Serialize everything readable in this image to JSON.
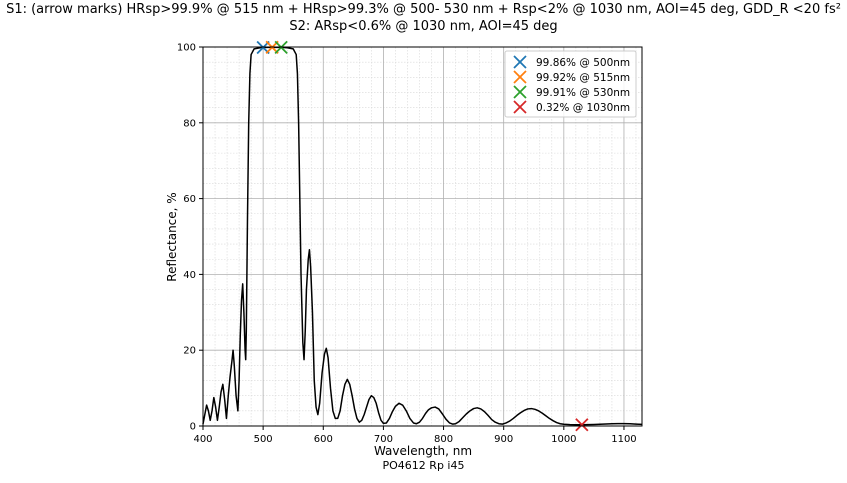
{
  "chart_data": {
    "type": "line",
    "title_line1": "S1: (arrow marks) HRsp>99.9% @ 515 nm + HRsp>99.3% @ 500- 530 nm + Rsp<2% @ 1030 nm, AOI=45 deg, GDD_R <20 fs²",
    "title_line2": "S2: ARsp<0.6% @ 1030 nm, AOI=45 deg",
    "xlabel": "Wavelength, nm",
    "ylabel": "Reflectance, %",
    "xlim": [
      400,
      1130
    ],
    "ylim": [
      0,
      100
    ],
    "xticks": [
      400,
      500,
      600,
      700,
      800,
      900,
      1000,
      1100
    ],
    "yticks": [
      0,
      20,
      40,
      60,
      80,
      100
    ],
    "grid": true,
    "minor_grid": true,
    "legend_position": "top-right",
    "line_color": "#000000",
    "series": [
      {
        "values": [
          [
            400,
            0.5
          ],
          [
            403,
            3
          ],
          [
            406,
            5.5
          ],
          [
            409,
            4
          ],
          [
            412,
            1.5
          ],
          [
            415,
            4
          ],
          [
            418,
            7.5
          ],
          [
            421,
            5
          ],
          [
            424,
            1.5
          ],
          [
            427,
            5
          ],
          [
            430,
            9
          ],
          [
            433,
            11
          ],
          [
            436,
            7
          ],
          [
            439,
            2
          ],
          [
            442,
            8
          ],
          [
            445,
            13
          ],
          [
            448,
            17
          ],
          [
            450,
            20
          ],
          [
            452,
            16
          ],
          [
            455,
            8
          ],
          [
            458,
            4
          ],
          [
            460,
            12
          ],
          [
            462,
            24
          ],
          [
            464,
            33
          ],
          [
            466,
            37.5
          ],
          [
            468,
            30
          ],
          [
            470,
            20
          ],
          [
            471,
            17.5
          ],
          [
            472,
            25
          ],
          [
            474,
            55
          ],
          [
            476,
            80
          ],
          [
            478,
            93
          ],
          [
            480,
            98
          ],
          [
            485,
            99.5
          ],
          [
            495,
            99.8
          ],
          [
            500,
            99.86
          ],
          [
            515,
            99.92
          ],
          [
            530,
            99.91
          ],
          [
            540,
            99.8
          ],
          [
            550,
            99.5
          ],
          [
            555,
            98
          ],
          [
            557,
            93
          ],
          [
            559,
            80
          ],
          [
            561,
            60
          ],
          [
            563,
            40
          ],
          [
            566,
            22
          ],
          [
            568,
            17.5
          ],
          [
            570,
            25
          ],
          [
            572,
            36
          ],
          [
            575,
            44
          ],
          [
            577,
            46.5
          ],
          [
            579,
            42
          ],
          [
            582,
            30
          ],
          [
            585,
            12
          ],
          [
            588,
            5
          ],
          [
            591,
            3
          ],
          [
            594,
            6
          ],
          [
            598,
            14
          ],
          [
            602,
            19
          ],
          [
            605,
            20.5
          ],
          [
            608,
            18
          ],
          [
            612,
            10
          ],
          [
            616,
            4
          ],
          [
            620,
            2
          ],
          [
            624,
            2
          ],
          [
            628,
            4
          ],
          [
            632,
            8
          ],
          [
            636,
            11
          ],
          [
            640,
            12.3
          ],
          [
            644,
            11
          ],
          [
            648,
            8
          ],
          [
            652,
            4.5
          ],
          [
            656,
            2
          ],
          [
            660,
            1
          ],
          [
            664,
            1.5
          ],
          [
            668,
            3
          ],
          [
            672,
            5
          ],
          [
            676,
            7
          ],
          [
            680,
            8
          ],
          [
            684,
            7.5
          ],
          [
            688,
            6
          ],
          [
            692,
            3.5
          ],
          [
            696,
            1.5
          ],
          [
            700,
            0.7
          ],
          [
            705,
            0.8
          ],
          [
            710,
            2
          ],
          [
            715,
            3.8
          ],
          [
            720,
            5.2
          ],
          [
            726,
            6
          ],
          [
            732,
            5.5
          ],
          [
            738,
            4
          ],
          [
            744,
            2
          ],
          [
            750,
            0.8
          ],
          [
            755,
            0.6
          ],
          [
            760,
            1
          ],
          [
            765,
            2
          ],
          [
            770,
            3.3
          ],
          [
            775,
            4.3
          ],
          [
            780,
            4.8
          ],
          [
            786,
            5
          ],
          [
            792,
            4.5
          ],
          [
            798,
            3.2
          ],
          [
            804,
            1.8
          ],
          [
            810,
            0.8
          ],
          [
            815,
            0.5
          ],
          [
            820,
            0.6
          ],
          [
            826,
            1.2
          ],
          [
            832,
            2.2
          ],
          [
            838,
            3.2
          ],
          [
            844,
            4
          ],
          [
            850,
            4.6
          ],
          [
            856,
            4.8
          ],
          [
            862,
            4.5
          ],
          [
            868,
            3.8
          ],
          [
            874,
            2.8
          ],
          [
            880,
            1.7
          ],
          [
            886,
            1
          ],
          [
            892,
            0.6
          ],
          [
            898,
            0.5
          ],
          [
            904,
            0.8
          ],
          [
            910,
            1.3
          ],
          [
            916,
            2
          ],
          [
            922,
            2.8
          ],
          [
            928,
            3.5
          ],
          [
            934,
            4.1
          ],
          [
            940,
            4.5
          ],
          [
            946,
            4.6
          ],
          [
            952,
            4.4
          ],
          [
            958,
            4
          ],
          [
            964,
            3.4
          ],
          [
            970,
            2.7
          ],
          [
            976,
            2
          ],
          [
            982,
            1.4
          ],
          [
            988,
            0.9
          ],
          [
            994,
            0.6
          ],
          [
            1000,
            0.45
          ],
          [
            1010,
            0.35
          ],
          [
            1020,
            0.32
          ],
          [
            1030,
            0.32
          ],
          [
            1040,
            0.35
          ],
          [
            1050,
            0.4
          ],
          [
            1060,
            0.45
          ],
          [
            1070,
            0.52
          ],
          [
            1080,
            0.58
          ],
          [
            1090,
            0.62
          ],
          [
            1100,
            0.62
          ],
          [
            1110,
            0.58
          ],
          [
            1120,
            0.5
          ],
          [
            1130,
            0.42
          ]
        ]
      }
    ],
    "markers": [
      {
        "label": "99.86% @ 500nm",
        "x": 500,
        "y": 99.86,
        "color": "#1f77b4"
      },
      {
        "label": "99.92% @ 515nm",
        "x": 515,
        "y": 99.92,
        "color": "#ff7f0e"
      },
      {
        "label": "99.91% @ 530nm",
        "x": 530,
        "y": 99.91,
        "color": "#2ca02c"
      },
      {
        "label": "0.32% @ 1030nm",
        "x": 1030,
        "y": 0.32,
        "color": "#d62728"
      }
    ]
  },
  "caption": "PO4612 Rp i45"
}
